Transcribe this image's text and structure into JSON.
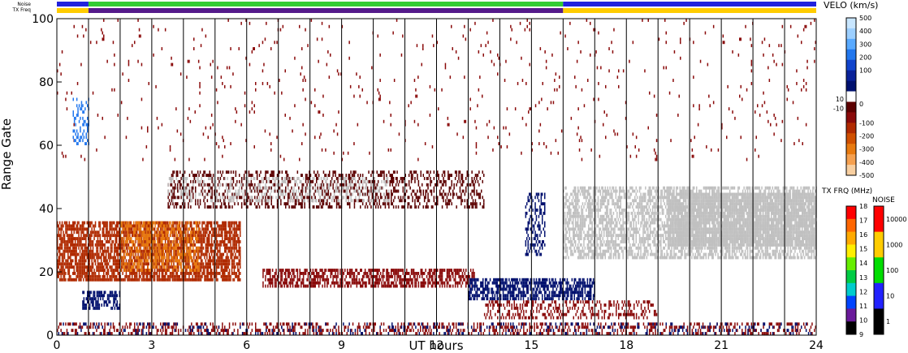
{
  "chart_data": {
    "type": "heatmap",
    "title": "",
    "xlabel": "UT hours",
    "ylabel": "Range Gate",
    "xlim": [
      0,
      24
    ],
    "ylim": [
      0,
      100
    ],
    "x_ticks": [
      0,
      3,
      6,
      9,
      12,
      15,
      18,
      21,
      24
    ],
    "x_tick_labels": [
      "0",
      "3",
      "6",
      "9",
      "12",
      "15",
      "18",
      "21",
      "24"
    ],
    "y_ticks": [
      0,
      20,
      40,
      60,
      80,
      100
    ],
    "y_tick_labels": [
      "0",
      "20",
      "40",
      "60",
      "80",
      "100"
    ],
    "hour_dividers": [
      1,
      2,
      3,
      4,
      5,
      6,
      7,
      8,
      9,
      10,
      11,
      12,
      13,
      14,
      15,
      16,
      17,
      18,
      19,
      20,
      21,
      22,
      23
    ],
    "strips": {
      "noise": {
        "label": "Noise",
        "segments": [
          {
            "t0": 0,
            "t1": 1,
            "color": "#2222dd"
          },
          {
            "t0": 1,
            "t1": 16,
            "color": "#33cc33"
          },
          {
            "t0": 16,
            "t1": 24,
            "color": "#2222dd"
          }
        ]
      },
      "tx_freq": {
        "label": "TX Freq",
        "segments": [
          {
            "t0": 0,
            "t1": 1,
            "color": "#ffcc00"
          },
          {
            "t0": 1,
            "t1": 16,
            "color": "#551a8b"
          },
          {
            "t0": 16,
            "t1": 24,
            "color": "#ffcc00"
          }
        ]
      }
    },
    "velocity_scale": {
      "label": "VELO (km/s)",
      "ticks": [
        "500",
        "400",
        "300",
        "200",
        "100",
        "10",
        "0",
        "-10",
        "-100",
        "-200",
        "-300",
        "-400",
        "-500"
      ],
      "colors": [
        "#c8e6ff",
        "#9ccfff",
        "#5aaaff",
        "#2277ee",
        "#1144cc",
        "#0a2299",
        "#00106e",
        "#ffffff",
        "#5c0000",
        "#8a0a0a",
        "#b02a00",
        "#d05000",
        "#e87a10",
        "#f5a050",
        "#f8cfa0"
      ]
    },
    "frequency_scale": {
      "label": "TX FRQ (MHz)",
      "ticks": [
        "18",
        "17",
        "16",
        "15",
        "14",
        "13",
        "12",
        "11",
        "10",
        "9"
      ],
      "colors": [
        "#ff0000",
        "#ff6600",
        "#ffaa00",
        "#ffee00",
        "#66ee00",
        "#00cc44",
        "#00cccc",
        "#0044ff",
        "#6a1a9a",
        "#000000"
      ]
    },
    "noise_scale": {
      "label": "NOISE",
      "ticks": [
        "10000",
        "1000",
        "100",
        "10",
        "1"
      ],
      "colors": [
        "#ff0000",
        "#ffcc00",
        "#00dd00",
        "#2222ff",
        "#000000"
      ]
    },
    "regions": [
      {
        "name": "near-range-low-velocity",
        "t0": 0.0,
        "t1": 24.0,
        "g0": 0,
        "g1": 4,
        "color": "#8a0a0a",
        "density": 0.35
      },
      {
        "name": "near-range-toward",
        "t0": 0.0,
        "t1": 24.0,
        "g0": 0,
        "g1": 4,
        "color": "#00106e",
        "density": 0.12
      },
      {
        "name": "morning-descending-echo",
        "t0": 0.0,
        "t1": 5.8,
        "g0": 17,
        "g1": 36,
        "color": "#b02a00",
        "density": 0.75
      },
      {
        "name": "morning-descending-echo-strong",
        "t0": 2.0,
        "t1": 4.5,
        "g0": 20,
        "g1": 36,
        "color": "#e87a10",
        "density": 0.45
      },
      {
        "name": "early-gate-10-echo",
        "t0": 0.8,
        "t1": 2.0,
        "g0": 8,
        "g1": 14,
        "color": "#00106e",
        "density": 0.6
      },
      {
        "name": "gate-18-band",
        "t0": 6.5,
        "t1": 13.2,
        "g0": 15,
        "g1": 21,
        "color": "#8a0a0a",
        "density": 0.6
      },
      {
        "name": "afternoon-toward-band",
        "t0": 13.0,
        "t1": 17.0,
        "g0": 11,
        "g1": 18,
        "color": "#00106e",
        "density": 0.65
      },
      {
        "name": "gate-8-band",
        "t0": 13.5,
        "t1": 19.0,
        "g0": 5,
        "g1": 11,
        "color": "#8a0a0a",
        "density": 0.35
      },
      {
        "name": "gate-45-band",
        "t0": 3.5,
        "t1": 13.5,
        "g0": 40,
        "g1": 52,
        "color": "#5c0000",
        "density": 0.35
      },
      {
        "name": "gate-45-ground-scatter",
        "t0": 3.5,
        "t1": 10.5,
        "g0": 42,
        "g1": 50,
        "color": "#c0c0c0",
        "density": 0.25
      },
      {
        "name": "evening-ground-scatter",
        "t0": 16.0,
        "t1": 24.0,
        "g0": 24,
        "g1": 47,
        "color": "#c0c0c0",
        "density": 0.6
      },
      {
        "name": "late-ground-scatter-dense",
        "t0": 19.3,
        "t1": 24.0,
        "g0": 28,
        "g1": 45,
        "color": "#c0c0c0",
        "density": 0.85
      },
      {
        "name": "scattered-high-gates",
        "t0": 0.0,
        "t1": 24.0,
        "g0": 55,
        "g1": 100,
        "color": "#8a0a0a",
        "density": 0.02
      },
      {
        "name": "early-high-blue",
        "t0": 0.5,
        "t1": 1.0,
        "g0": 60,
        "g1": 75,
        "color": "#2277ee",
        "density": 0.3
      },
      {
        "name": "mid-blue-column",
        "t0": 14.8,
        "t1": 15.4,
        "g0": 25,
        "g1": 45,
        "color": "#00106e",
        "density": 0.4
      }
    ]
  }
}
